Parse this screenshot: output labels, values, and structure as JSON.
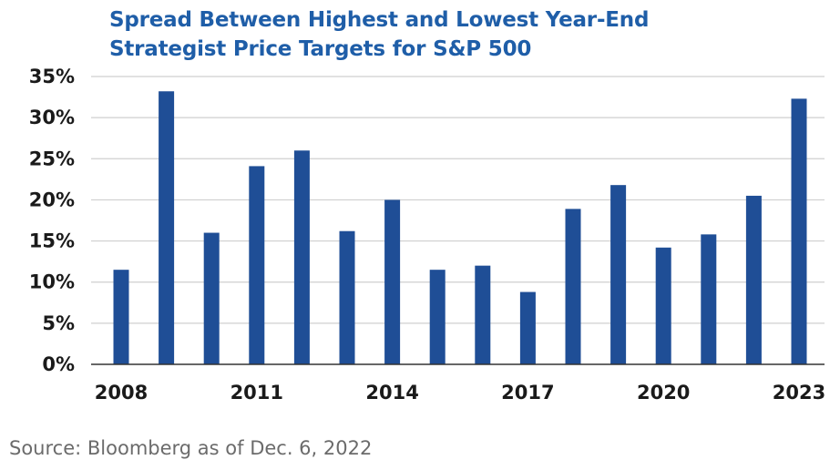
{
  "chart_data": {
    "type": "bar",
    "title_lines": [
      "Spread Between Highest and Lowest Year-End",
      "Strategist Price Targets for S&P 500"
    ],
    "categories": [
      "2008",
      "2009",
      "2010",
      "2011",
      "2012",
      "2013",
      "2014",
      "2015",
      "2016",
      "2017",
      "2018",
      "2019",
      "2020",
      "2021",
      "2022",
      "2023"
    ],
    "values": [
      11.5,
      33.2,
      16.0,
      24.1,
      26.0,
      16.2,
      20.0,
      11.5,
      12.0,
      8.8,
      18.9,
      21.8,
      14.2,
      15.8,
      20.5,
      32.3
    ],
    "x_tick_labels": [
      "2008",
      "2011",
      "2014",
      "2017",
      "2020",
      "2023"
    ],
    "y_tick_labels": [
      "0%",
      "5%",
      "10%",
      "15%",
      "20%",
      "25%",
      "30%",
      "35%"
    ],
    "y_ticks": [
      0,
      5,
      10,
      15,
      20,
      25,
      30,
      35
    ],
    "ylim": [
      0,
      35
    ],
    "unit": "%",
    "bar_color": "#1f4e96",
    "grid": true,
    "legend": false
  },
  "source_text": "Source: Bloomberg as of Dec. 6, 2022",
  "colors": {
    "title": "#1f5ea8",
    "grid": "#cfcfcf",
    "axis": "#333333"
  }
}
